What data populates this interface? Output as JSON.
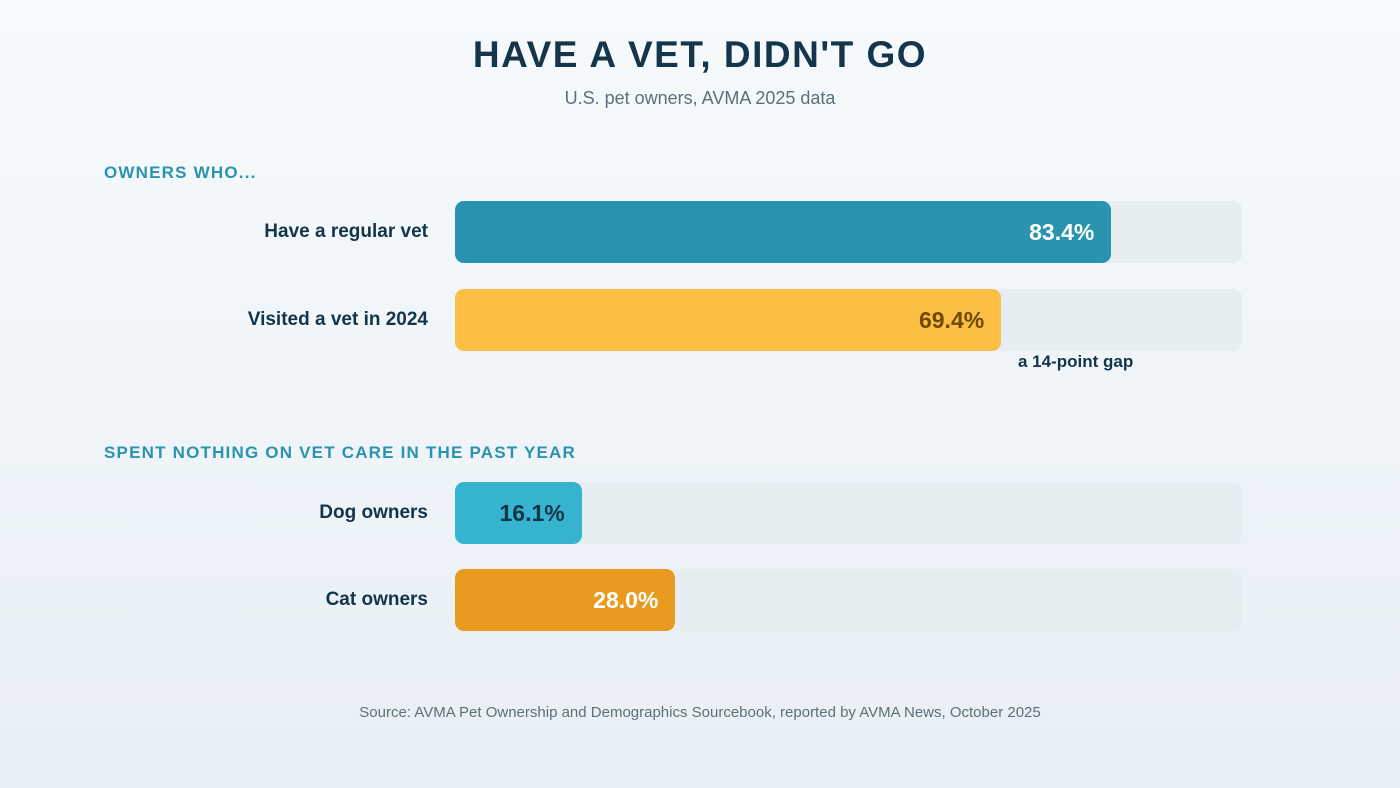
{
  "title": "HAVE A VET, DIDN'T GO",
  "subtitle": "U.S. pet owners, AVMA 2025 data",
  "source": "Source: AVMA Pet Ownership and Demographics Sourcebook, reported by AVMA News, October 2025",
  "colors": {
    "regular_vet": "#2a94b0",
    "visited": "#fdbf43",
    "dog": "#35b3cf",
    "cat": "#e89b1f",
    "track": "#e6eef2",
    "heading": "#2b93b0"
  },
  "chart_data": [
    {
      "type": "bar",
      "orientation": "horizontal",
      "heading": "OWNERS WHO...",
      "categories": [
        "Have a regular vet",
        "Visited a vet in 2024"
      ],
      "values": [
        83.4,
        69.4
      ],
      "value_labels": [
        "83.4%",
        "69.4%"
      ],
      "xlim": [
        0,
        100
      ],
      "annotation": "a 14-point gap"
    },
    {
      "type": "bar",
      "orientation": "horizontal",
      "heading": "SPENT NOTHING ON VET CARE IN THE PAST YEAR",
      "categories": [
        "Dog owners",
        "Cat owners"
      ],
      "values": [
        16.1,
        28.0
      ],
      "value_labels": [
        "16.1%",
        "28.0%"
      ],
      "xlim": [
        0,
        100
      ]
    }
  ]
}
